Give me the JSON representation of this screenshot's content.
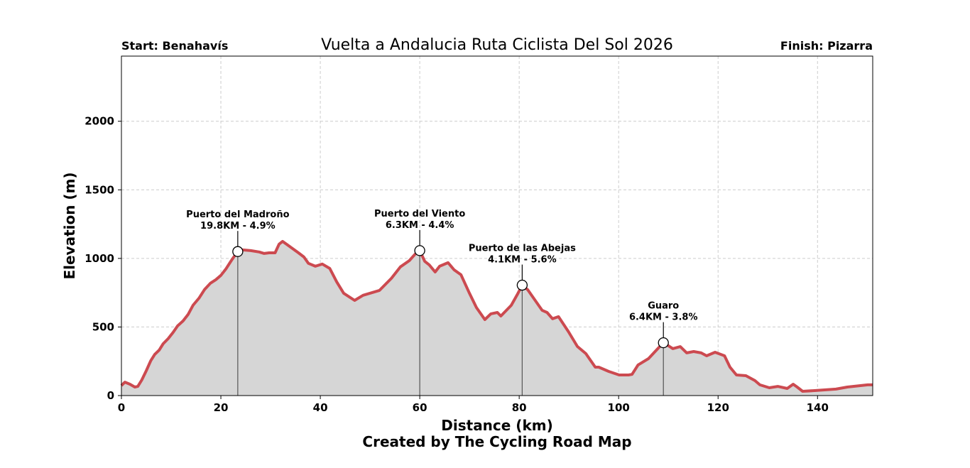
{
  "chart_data": {
    "type": "area",
    "title": "Vuelta a Andalucia Ruta Ciclista Del Sol 2026",
    "start_label": "Start: Benahavís",
    "finish_label": "Finish: Pizarra",
    "xlabel": "Distance (km)",
    "ylabel": "Elevation (m)",
    "credit": "Created by The Cycling Road Map",
    "xlim": [
      0,
      151.1
    ],
    "ylim": [
      0,
      2475
    ],
    "xticks": [
      0,
      20,
      40,
      60,
      80,
      100,
      120,
      140
    ],
    "yticks": [
      0,
      500,
      1000,
      1500,
      2000
    ],
    "grid": true,
    "colors": {
      "line": "#cc4a50",
      "fill": "#d6d6d6",
      "grid": "#cccccc"
    },
    "profile": {
      "x": [
        0,
        0.7,
        1.7,
        2.7,
        3.3,
        4.1,
        5,
        5.9,
        6.7,
        7.6,
        8.4,
        9.4,
        10.4,
        11.3,
        12.4,
        13.4,
        14.4,
        15.6,
        16.7,
        17.9,
        19,
        20,
        21,
        22.1,
        23.1,
        23.4,
        24.4,
        26,
        27.7,
        28.7,
        29.7,
        30.9,
        31.7,
        32.4,
        33.4,
        35.6,
        36.7,
        37.6,
        39,
        40.4,
        41.9,
        43.3,
        44.7,
        46.9,
        48.6,
        51.9,
        54.3,
        56.1,
        57.9,
        59.3,
        60,
        61,
        61.9,
        63.1,
        64,
        65.7,
        66.9,
        68.3,
        70,
        71.4,
        73.1,
        74.3,
        75.6,
        76.3,
        78.4,
        79.6,
        80.6,
        81.7,
        84.6,
        85.6,
        86.7,
        87.9,
        89.9,
        91.7,
        93.4,
        95.3,
        96,
        98,
        100.1,
        102,
        102.7,
        103.9,
        106,
        108,
        109,
        109.6,
        110.9,
        112.4,
        113.7,
        115.1,
        116.6,
        117.7,
        119.4,
        121.3,
        122.4,
        123.7,
        125.6,
        127.4,
        128.4,
        130.3,
        132,
        133.9,
        135.1,
        135.9,
        137,
        139.4,
        143.7,
        146,
        150.1,
        151.1
      ],
      "y": [
        73,
        98,
        83,
        62,
        67,
        114,
        181,
        254,
        300,
        332,
        378,
        415,
        461,
        508,
        544,
        591,
        658,
        710,
        772,
        819,
        845,
        876,
        922,
        984,
        1036,
        1050,
        1062,
        1057,
        1047,
        1036,
        1041,
        1041,
        1104,
        1124,
        1098,
        1041,
        1010,
        964,
        943,
        959,
        927,
        829,
        746,
        694,
        731,
        767,
        855,
        938,
        984,
        1040,
        1057,
        979,
        953,
        901,
        943,
        969,
        917,
        881,
        746,
        642,
        554,
        596,
        606,
        580,
        658,
        736,
        805,
        772,
        622,
        606,
        560,
        575,
        466,
        358,
        306,
        207,
        207,
        176,
        150,
        150,
        155,
        223,
        269,
        347,
        385,
        373,
        342,
        357,
        311,
        321,
        311,
        290,
        316,
        290,
        207,
        150,
        145,
        109,
        78,
        57,
        67,
        52,
        83,
        62,
        31,
        36,
        47,
        62,
        78,
        78
      ]
    },
    "annotations": [
      {
        "name": "Puerto del Madroño",
        "detail": "19.8KM - 4.9%",
        "x": 23.4,
        "y": 1050
      },
      {
        "name": "Puerto del Viento",
        "detail": "6.3KM - 4.4%",
        "x": 60,
        "y": 1057
      },
      {
        "name": "Puerto de las Abejas",
        "detail": "4.1KM - 5.6%",
        "x": 80.6,
        "y": 805
      },
      {
        "name": "Guaro",
        "detail": "6.4KM - 3.8%",
        "x": 109,
        "y": 385
      }
    ]
  }
}
